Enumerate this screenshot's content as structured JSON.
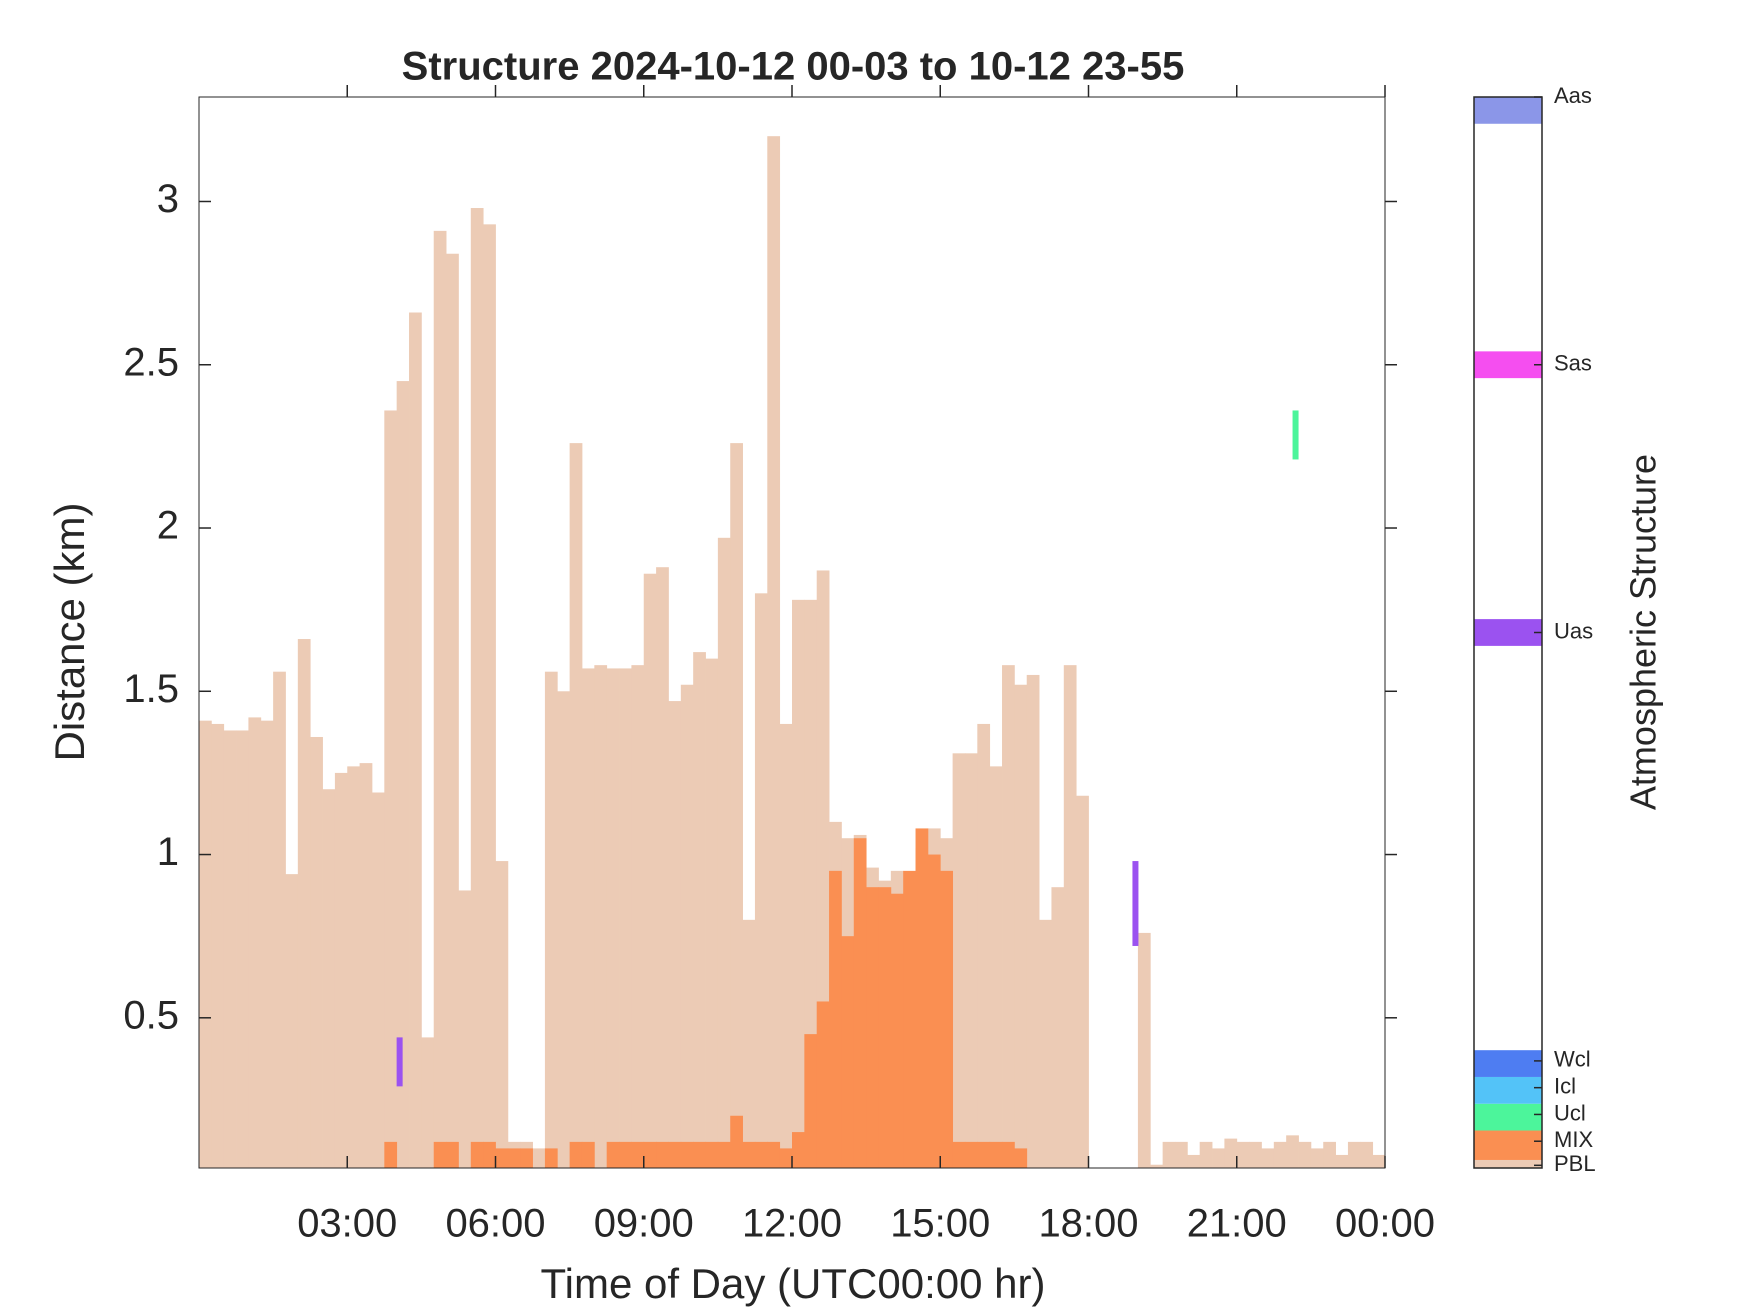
{
  "chart_data": {
    "type": "bar",
    "title": "Structure 2024-10-12 00-03 to 10-12 23-55",
    "x_label": "Time of Day (UTC00:00 hr)",
    "y_label": "Distance (km)",
    "x": [
      0,
      0.25,
      0.5,
      0.75,
      1,
      1.25,
      1.5,
      1.75,
      2,
      2.25,
      2.5,
      2.75,
      3,
      3.25,
      3.5,
      3.75,
      4,
      4.25,
      4.5,
      4.75,
      5,
      5.25,
      5.5,
      5.75,
      6,
      6.25,
      6.5,
      6.75,
      7,
      7.25,
      7.5,
      7.75,
      8,
      8.25,
      8.5,
      8.75,
      9,
      9.25,
      9.5,
      9.75,
      10,
      10.25,
      10.5,
      10.75,
      11,
      11.25,
      11.5,
      11.75,
      12,
      12.25,
      12.5,
      12.75,
      13,
      13.25,
      13.5,
      13.75,
      14,
      14.25,
      14.5,
      14.75,
      15,
      15.25,
      15.5,
      15.75,
      16,
      16.25,
      16.5,
      16.75,
      17,
      17.25,
      17.5,
      17.75,
      18,
      18.25,
      18.5,
      18.75,
      19,
      19.25,
      19.5,
      19.75,
      20,
      20.25,
      20.5,
      20.75,
      21,
      21.25,
      21.5,
      21.75,
      22,
      22.25,
      22.5,
      22.75,
      23,
      23.25,
      23.5,
      23.75
    ],
    "series": [
      {
        "name": "PBL",
        "color": "#eccbb5",
        "values": [
          1.41,
          1.4,
          1.38,
          1.38,
          1.42,
          1.41,
          1.56,
          0.94,
          1.66,
          1.36,
          1.2,
          1.25,
          1.27,
          1.28,
          1.19,
          2.36,
          2.45,
          2.66,
          0.44,
          2.91,
          2.84,
          0.89,
          2.98,
          2.93,
          0.98,
          0.12,
          0.12,
          0.1,
          1.56,
          1.5,
          2.26,
          1.57,
          1.58,
          1.57,
          1.57,
          1.58,
          1.86,
          1.88,
          1.47,
          1.52,
          1.62,
          1.6,
          1.97,
          2.26,
          0.8,
          1.8,
          3.2,
          1.4,
          1.78,
          1.78,
          1.87,
          1.1,
          1.05,
          1.06,
          0.96,
          0.92,
          0.95,
          0.94,
          1.02,
          1.08,
          1.05,
          1.31,
          1.31,
          1.4,
          1.27,
          1.58,
          1.52,
          1.55,
          0.8,
          0.9,
          1.58,
          1.18,
          null,
          null,
          null,
          null,
          0.76,
          0.05,
          0.12,
          0.12,
          0.08,
          0.12,
          0.1,
          0.13,
          0.12,
          0.12,
          0.1,
          0.12,
          0.14,
          0.12,
          0.1,
          0.12,
          0.08,
          0.12,
          0.12,
          0.08
        ]
      },
      {
        "name": "MIX",
        "color": "#fa8f52",
        "values": [
          null,
          null,
          null,
          null,
          null,
          null,
          null,
          null,
          null,
          null,
          null,
          null,
          null,
          null,
          null,
          0.12,
          null,
          null,
          null,
          0.12,
          0.12,
          null,
          0.12,
          0.12,
          0.1,
          0.1,
          0.1,
          null,
          0.1,
          null,
          0.12,
          0.12,
          null,
          0.12,
          0.12,
          0.12,
          0.12,
          0.12,
          0.12,
          0.12,
          0.12,
          0.12,
          0.12,
          0.2,
          0.12,
          0.12,
          0.12,
          0.1,
          0.15,
          0.45,
          0.55,
          0.95,
          0.75,
          1.05,
          0.9,
          0.9,
          0.88,
          0.95,
          1.08,
          1.0,
          0.95,
          0.12,
          0.12,
          0.12,
          0.12,
          0.12,
          0.1,
          null,
          null,
          null,
          null,
          null,
          null,
          null,
          null,
          null,
          null,
          null,
          null,
          null,
          null,
          null,
          null,
          null,
          null,
          null,
          null,
          null,
          null,
          null,
          null,
          null,
          null,
          null,
          null,
          null
        ]
      }
    ],
    "segments": [
      {
        "name": "Uas",
        "x": 4.06,
        "range": [
          0.29,
          0.44
        ]
      },
      {
        "name": "Uas",
        "x": 18.95,
        "range": [
          0.72,
          0.98
        ]
      },
      {
        "name": "Ucl",
        "x": 22.19,
        "range": [
          2.21,
          2.36
        ]
      }
    ],
    "xlim": [
      0,
      24
    ],
    "xticks": [
      {
        "value": 3,
        "label": "03:00"
      },
      {
        "value": 6,
        "label": "06:00"
      },
      {
        "value": 9,
        "label": "09:00"
      },
      {
        "value": 12,
        "label": "12:00"
      },
      {
        "value": 15,
        "label": "15:00"
      },
      {
        "value": 18,
        "label": "18:00"
      },
      {
        "value": 21,
        "label": "21:00"
      },
      {
        "value": 24,
        "label": "00:00"
      }
    ],
    "ylim": [
      0.04,
      3.32
    ],
    "yticks": [
      0.5,
      1,
      1.5,
      2,
      2.5,
      3
    ],
    "colorbar": {
      "label": "Atmospheric Structure",
      "clim": [
        0,
        40
      ],
      "items": [
        {
          "label": "PBL",
          "value": 0.1,
          "color": "#eccbb5",
          "range": [
            0,
            0.3
          ]
        },
        {
          "label": "MIX",
          "value": 1,
          "color": "#fa8f52",
          "range": [
            0.3,
            1.4
          ]
        },
        {
          "label": "Ucl",
          "value": 2,
          "color": "#4cf59b",
          "range": [
            1.4,
            2.4
          ]
        },
        {
          "label": "Icl",
          "value": 3,
          "color": "#53c3f8",
          "range": [
            2.4,
            3.4
          ]
        },
        {
          "label": "Wcl",
          "value": 4,
          "color": "#4e7df2",
          "range": [
            3.4,
            4.4
          ]
        },
        {
          "label": "Uas",
          "value": 20,
          "color": "#9b52f0",
          "range": [
            19.5,
            20.5
          ]
        },
        {
          "label": "Sas",
          "value": 30,
          "color": "#f54ef0",
          "range": [
            29.5,
            30.5
          ]
        },
        {
          "label": "Aas",
          "value": 40,
          "color": "#8b96e8",
          "range": [
            39,
            40
          ]
        }
      ]
    }
  }
}
